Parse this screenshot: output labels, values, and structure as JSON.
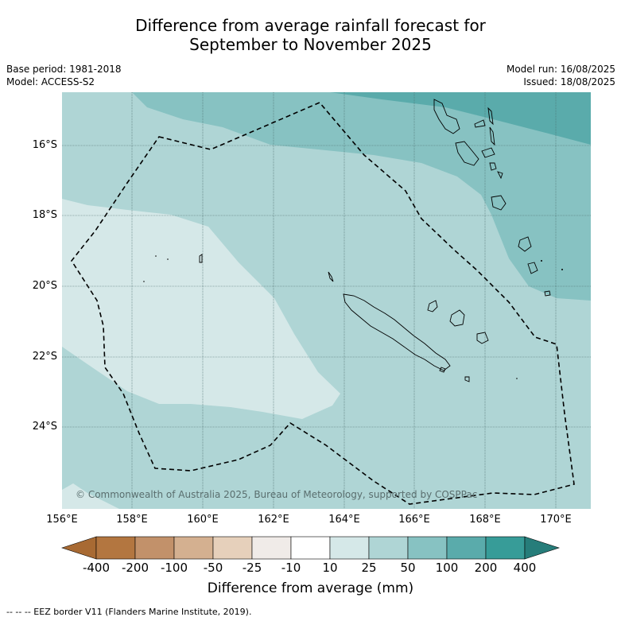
{
  "title_line1": "Difference from average rainfall forecast for",
  "title_line2": "September to November 2025",
  "base_period": "Base period: 1981-2018",
  "model": "Model: ACCESS-S2",
  "model_run": "Model run: 16/08/2025",
  "issued": "Issued: 18/08/2025",
  "copyright": "© Commonwealth of Australia 2025, Bureau of Meteorology, supported by COSPPac",
  "lat_labels": [
    "16°S",
    "18°S",
    "20°S",
    "22°S",
    "24°S"
  ],
  "lon_labels": [
    "156°E",
    "158°E",
    "160°E",
    "162°E",
    "164°E",
    "166°E",
    "168°E",
    "170°E"
  ],
  "colorbar": {
    "title": "Difference from average (mm)",
    "labels": [
      "-400",
      "-200",
      "-100",
      "-50",
      "-25",
      "-10",
      "10",
      "25",
      "50",
      "100",
      "200",
      "400"
    ],
    "colors": [
      "#a86a33",
      "#b37640",
      "#c2916a",
      "#d4b090",
      "#e6d0bb",
      "#f0ebe8",
      "#ffffff",
      "#d5e8e8",
      "#afd5d5",
      "#87c2c2",
      "#5aabab",
      "#379c98",
      "#267d7a"
    ]
  },
  "legend_footer": "--  --  -- EEZ border V11 (Flanders Marine Institute, 2019).",
  "map_colors": {
    "band_10_25": "#d5e8e8",
    "band_25_50": "#afd5d5",
    "band_50_100": "#87c2c2",
    "band_100_200": "#5aabab"
  }
}
